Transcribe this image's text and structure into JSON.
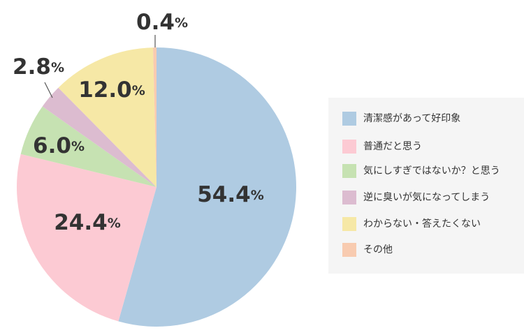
{
  "chart_data": {
    "type": "pie",
    "categories": [
      "清潔感があって好印象",
      "普通だと思う",
      "気にしすぎではないか？と思う",
      "逆に臭いが気になってしまう",
      "わからない・答えたくない",
      "その他"
    ],
    "values": [
      54.4,
      24.4,
      6.0,
      2.8,
      12.0,
      0.4
    ],
    "value_labels": [
      "54.4%",
      "24.4%",
      "6.0%",
      "2.8%",
      "12.0%",
      "0.4%"
    ],
    "colors": [
      "#afcbe2",
      "#fccad3",
      "#c6e2b2",
      "#dcbcd0",
      "#f6e8a6",
      "#f8cbb0"
    ]
  }
}
